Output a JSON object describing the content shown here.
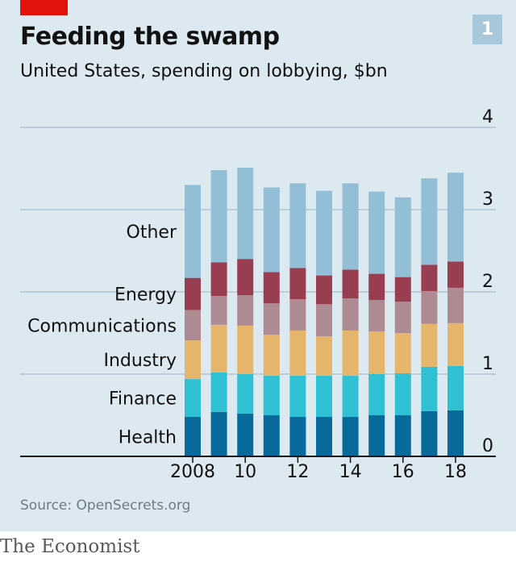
{
  "header": {
    "title": "Feeding the swamp",
    "subtitle": "United States, spending on lobbying, $bn",
    "badge": "1"
  },
  "footer": {
    "source": "Source: OpenSecrets.org",
    "brand": "The Economist"
  },
  "colors": {
    "background": "#dde9f0",
    "accent": "#e3120b",
    "gridline": "#a0b4c0"
  },
  "chart_data": {
    "type": "bar",
    "stacked": true,
    "categories": [
      "2008",
      "2009",
      "2010",
      "2011",
      "2012",
      "2013",
      "2014",
      "2015",
      "2016",
      "2017",
      "2018"
    ],
    "x_tick_labels": [
      {
        "category": "2008",
        "label": "2008"
      },
      {
        "category": "2010",
        "label": "10"
      },
      {
        "category": "2012",
        "label": "12"
      },
      {
        "category": "2014",
        "label": "14"
      },
      {
        "category": "2016",
        "label": "16"
      },
      {
        "category": "2018",
        "label": "18"
      }
    ],
    "y_ticks": [
      "0",
      "1",
      "2",
      "3",
      "4"
    ],
    "ylim": [
      0,
      4
    ],
    "y_axis_side": "right",
    "grid": true,
    "series": [
      {
        "name": "Health",
        "color": "#086a9b",
        "values": [
          0.48,
          0.54,
          0.52,
          0.5,
          0.48,
          0.48,
          0.48,
          0.5,
          0.5,
          0.55,
          0.56
        ]
      },
      {
        "name": "Finance",
        "color": "#2fc1d3",
        "values": [
          0.46,
          0.48,
          0.48,
          0.48,
          0.5,
          0.5,
          0.5,
          0.5,
          0.51,
          0.54,
          0.54
        ]
      },
      {
        "name": "Industry",
        "color": "#e4b56b",
        "values": [
          0.47,
          0.58,
          0.59,
          0.5,
          0.55,
          0.48,
          0.55,
          0.52,
          0.49,
          0.52,
          0.52
        ]
      },
      {
        "name": "Communications",
        "color": "#ae8b93",
        "values": [
          0.37,
          0.35,
          0.37,
          0.38,
          0.38,
          0.39,
          0.39,
          0.38,
          0.38,
          0.4,
          0.43
        ]
      },
      {
        "name": "Energy",
        "color": "#983e50",
        "values": [
          0.39,
          0.41,
          0.44,
          0.38,
          0.38,
          0.35,
          0.35,
          0.32,
          0.3,
          0.32,
          0.32
        ]
      },
      {
        "name": "Other",
        "color": "#93bfd6",
        "values": [
          1.13,
          1.12,
          1.11,
          1.03,
          1.03,
          1.03,
          1.05,
          1.0,
          0.97,
          1.05,
          1.08
        ]
      }
    ]
  }
}
